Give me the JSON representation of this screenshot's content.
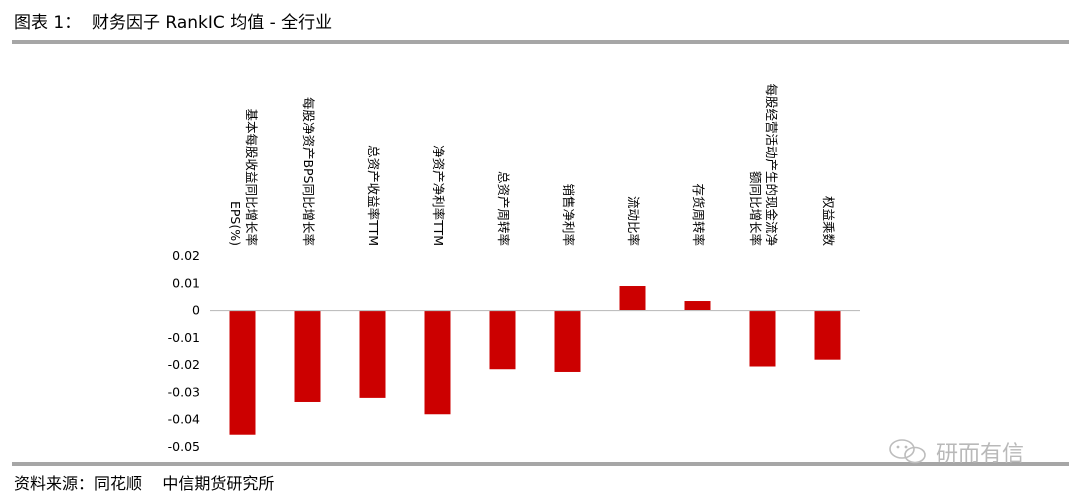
{
  "title": "图表 1：  财务因子 RankIC 均值 - 全行业",
  "source": "资料来源：同花顺    中信期货研究所",
  "watermark": "研而有信",
  "colors": {
    "bar": "#cc0000",
    "axis": "#bfbfbf",
    "rule": "#a6a6a6"
  },
  "chart_data": {
    "type": "bar",
    "title": "",
    "xlabel": "",
    "ylabel": "",
    "ylim": [
      -0.05,
      0.02
    ],
    "yticks": [
      0.02,
      0.01,
      0,
      -0.01,
      -0.02,
      -0.03,
      -0.04,
      -0.05
    ],
    "ytick_labels": [
      "0.02",
      "0.01",
      "0",
      "-0.01",
      "-0.02",
      "-0.03",
      "-0.04",
      "-0.05"
    ],
    "categories": [
      "基本每股收益同比增长率EPS(%)",
      "每股净资产BPS同比增长率",
      "总资产收益率TTM",
      "净资产净利率TTM",
      "总资产周转率",
      "销售净利率",
      "流动比率",
      "存货周转率",
      "每股经营活动产生的现金流净额同比增长率",
      "权益乘数"
    ],
    "category_label_lines": [
      [
        "基本每股收益同比增长率",
        "EPS(%)"
      ],
      [
        "每股净资产BPS同比增长率"
      ],
      [
        "总资产收益率TTM"
      ],
      [
        "净资产净利率TTM"
      ],
      [
        "总资产周转率"
      ],
      [
        "销售净利率"
      ],
      [
        "流动比率"
      ],
      [
        "存货周转率"
      ],
      [
        "每股经营活动产生的现金流净",
        "额同比增长率"
      ],
      [
        "权益乘数"
      ]
    ],
    "values": [
      -0.0455,
      -0.0335,
      -0.032,
      -0.038,
      -0.0215,
      -0.0225,
      0.009,
      0.0035,
      -0.0205,
      -0.018
    ],
    "grid": false,
    "legend": "none"
  }
}
